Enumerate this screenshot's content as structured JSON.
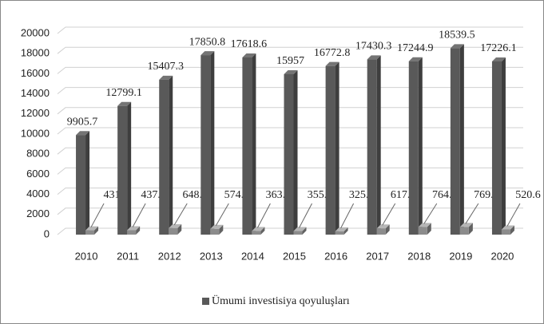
{
  "chart_data": {
    "type": "bar3d",
    "categories": [
      "2010",
      "2011",
      "2012",
      "2013",
      "2014",
      "2015",
      "2016",
      "2017",
      "2018",
      "2019",
      "2020"
    ],
    "series": [
      {
        "name": "Ümumi investisiya qoyuluşları",
        "color": "#595959",
        "values": [
          9905.7,
          12799.1,
          15407.3,
          17850.8,
          17618.6,
          15957,
          16772.8,
          17430.3,
          17244.9,
          18539.5,
          17226.1
        ]
      },
      {
        "color": "#8c8c8c",
        "values": [
          431,
          437.3,
          648.8,
          574.3,
          363.9,
          355.4,
          325.1,
          617.8,
          764.4,
          769.5,
          520.6
        ]
      }
    ],
    "ylim": [
      0,
      20000
    ],
    "yticks": [
      0,
      2000,
      4000,
      6000,
      8000,
      10000,
      12000,
      14000,
      16000,
      18000,
      20000
    ],
    "grid": true,
    "legend": "bottom"
  }
}
